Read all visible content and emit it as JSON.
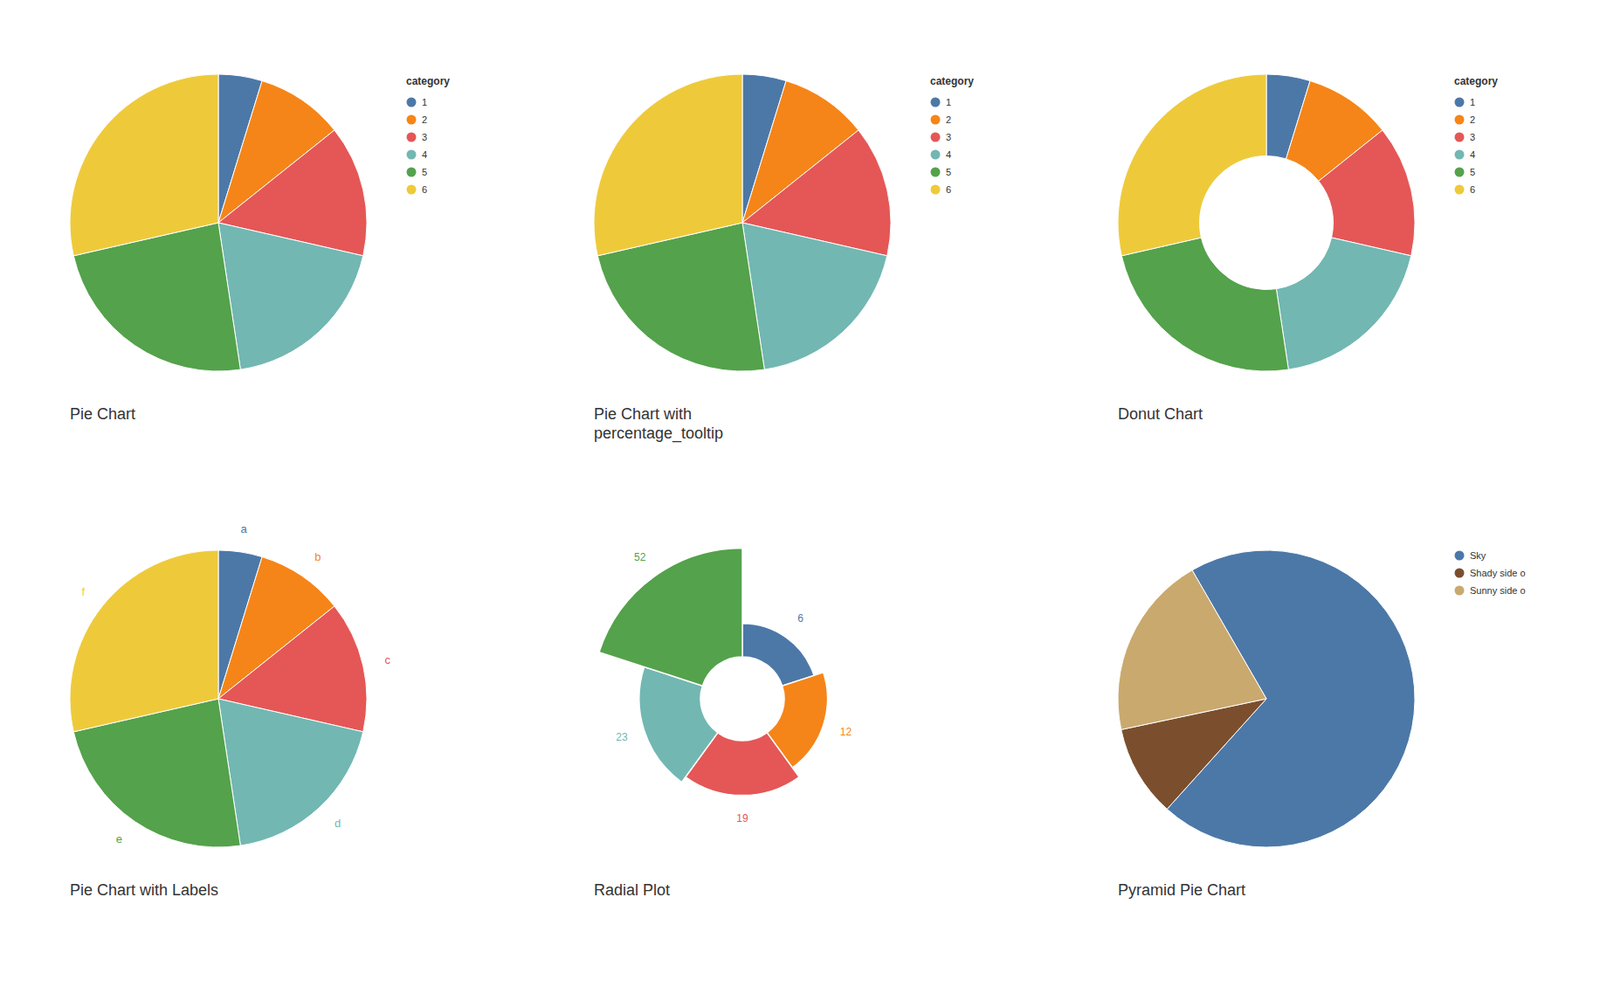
{
  "chart_data": [
    {
      "type": "pie",
      "title": "Pie Chart",
      "categories": [
        "1",
        "2",
        "3",
        "4",
        "5",
        "6"
      ],
      "values": [
        1,
        2,
        3,
        4,
        5,
        6
      ],
      "colors": [
        "#4c78a8",
        "#f58518",
        "#e45756",
        "#72b7b2",
        "#54a24b",
        "#eeca3b"
      ],
      "legend": "right",
      "legend_title": "category"
    },
    {
      "type": "pie",
      "title": "Pie Chart with\npercentage_tooltip",
      "categories": [
        "1",
        "2",
        "3",
        "4",
        "5",
        "6"
      ],
      "values": [
        1,
        2,
        3,
        4,
        5,
        6
      ],
      "colors": [
        "#4c78a8",
        "#f58518",
        "#e45756",
        "#72b7b2",
        "#54a24b",
        "#eeca3b"
      ],
      "legend": "right",
      "legend_title": "category"
    },
    {
      "type": "donut",
      "title": "Donut Chart",
      "categories": [
        "1",
        "2",
        "3",
        "4",
        "5",
        "6"
      ],
      "values": [
        1,
        2,
        3,
        4,
        5,
        6
      ],
      "colors": [
        "#4c78a8",
        "#f58518",
        "#e45756",
        "#72b7b2",
        "#54a24b",
        "#eeca3b"
      ],
      "legend": "right",
      "legend_title": "category"
    },
    {
      "type": "pie",
      "title": "Pie Chart with Labels",
      "categories": [
        "a",
        "b",
        "c",
        "d",
        "e",
        "f"
      ],
      "values": [
        1,
        2,
        3,
        4,
        5,
        6
      ],
      "colors": [
        "#4c78a8",
        "#f58518",
        "#e45756",
        "#72b7b2",
        "#54a24b",
        "#eeca3b"
      ]
    },
    {
      "type": "radial",
      "title": "Radial Plot",
      "values": [
        6,
        12,
        19,
        23,
        52
      ],
      "colors": [
        "#4c78a8",
        "#f58518",
        "#e45756",
        "#72b7b2",
        "#54a24b"
      ],
      "data_labels": true
    },
    {
      "type": "pie",
      "title": "Pyramid Pie Chart",
      "categories": [
        "Sky",
        "Shady side o",
        "Sunny side o"
      ],
      "values": [
        70,
        10,
        20
      ],
      "colors": [
        "#4c78a8",
        "#7b4f2e",
        "#c9a96e"
      ],
      "legend": "right"
    }
  ]
}
